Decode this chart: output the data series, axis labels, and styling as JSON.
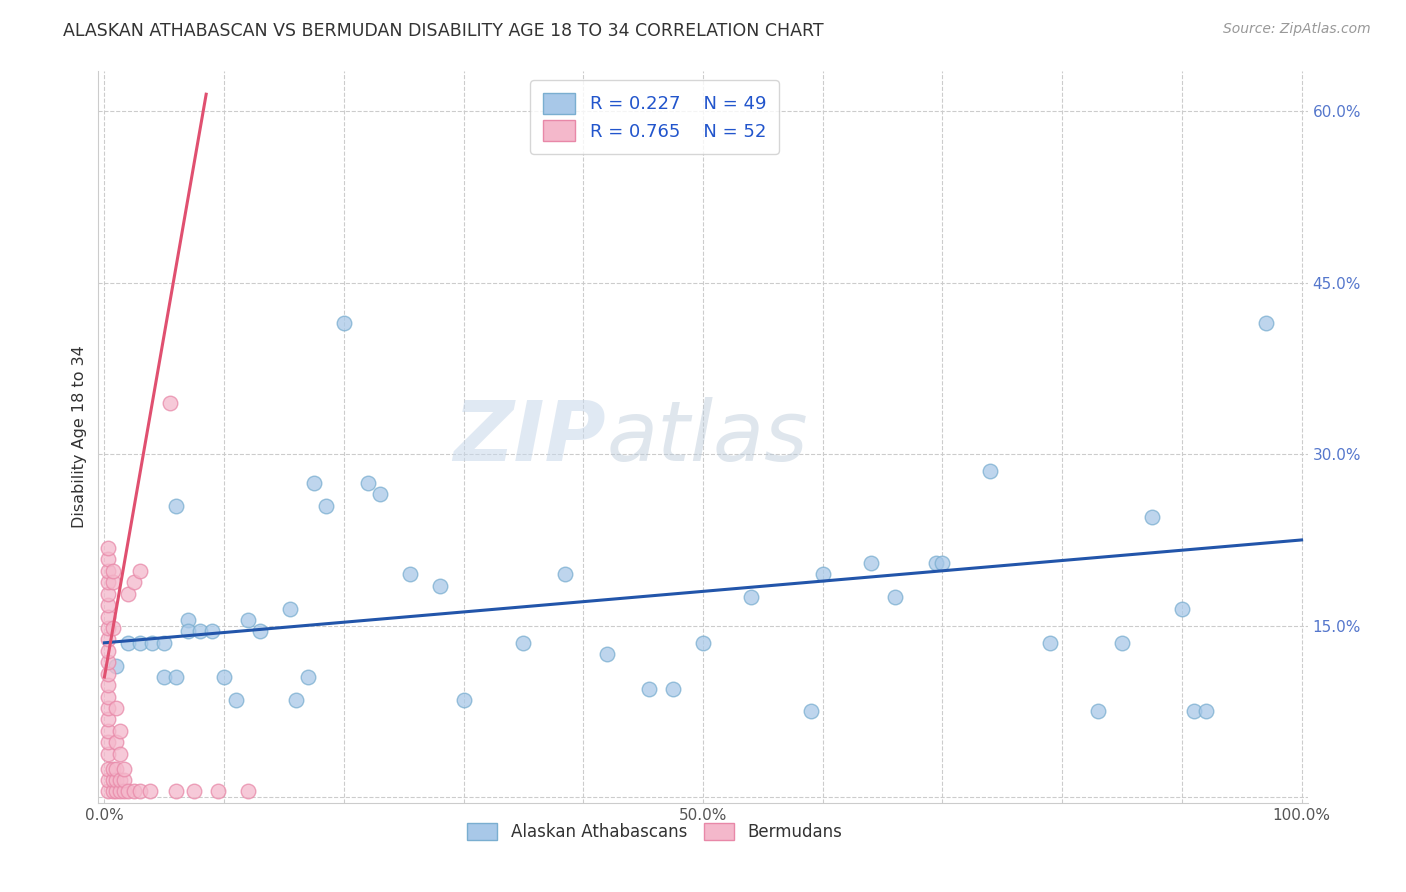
{
  "title": "ALASKAN ATHABASCAN VS BERMUDAN DISABILITY AGE 18 TO 34 CORRELATION CHART",
  "source": "Source: ZipAtlas.com",
  "ylabel": "Disability Age 18 to 34",
  "watermark_zip": "ZIP",
  "watermark_atlas": "atlas",
  "legend_r1": "R = 0.227",
  "legend_n1": "N = 49",
  "legend_r2": "R = 0.765",
  "legend_n2": "N = 52",
  "xlim": [
    -0.005,
    1.005
  ],
  "ylim": [
    -0.005,
    0.635
  ],
  "xticks": [
    0.0,
    0.1,
    0.2,
    0.3,
    0.4,
    0.5,
    0.6,
    0.7,
    0.8,
    0.9,
    1.0
  ],
  "xticklabels": [
    "0.0%",
    "",
    "",
    "",
    "",
    "50.0%",
    "",
    "",
    "",
    "",
    "100.0%"
  ],
  "yticks_right": [
    0.15,
    0.3,
    0.45,
    0.6
  ],
  "yticklabels_right": [
    "15.0%",
    "30.0%",
    "45.0%",
    "60.0%"
  ],
  "grid_yticks": [
    0.0,
    0.15,
    0.3,
    0.45,
    0.6
  ],
  "blue_color": "#a8c8e8",
  "blue_edge_color": "#7aaed0",
  "pink_color": "#f4b8cb",
  "pink_edge_color": "#e888a8",
  "blue_line_color": "#2255aa",
  "pink_line_color": "#e05070",
  "blue_scatter": [
    [
      0.01,
      0.115
    ],
    [
      0.02,
      0.135
    ],
    [
      0.03,
      0.135
    ],
    [
      0.04,
      0.135
    ],
    [
      0.05,
      0.135
    ],
    [
      0.05,
      0.105
    ],
    [
      0.06,
      0.105
    ],
    [
      0.06,
      0.255
    ],
    [
      0.07,
      0.155
    ],
    [
      0.07,
      0.145
    ],
    [
      0.08,
      0.145
    ],
    [
      0.09,
      0.145
    ],
    [
      0.1,
      0.105
    ],
    [
      0.11,
      0.085
    ],
    [
      0.12,
      0.155
    ],
    [
      0.13,
      0.145
    ],
    [
      0.155,
      0.165
    ],
    [
      0.16,
      0.085
    ],
    [
      0.17,
      0.105
    ],
    [
      0.175,
      0.275
    ],
    [
      0.185,
      0.255
    ],
    [
      0.2,
      0.415
    ],
    [
      0.22,
      0.275
    ],
    [
      0.23,
      0.265
    ],
    [
      0.255,
      0.195
    ],
    [
      0.28,
      0.185
    ],
    [
      0.3,
      0.085
    ],
    [
      0.35,
      0.135
    ],
    [
      0.385,
      0.195
    ],
    [
      0.42,
      0.125
    ],
    [
      0.455,
      0.095
    ],
    [
      0.475,
      0.095
    ],
    [
      0.5,
      0.135
    ],
    [
      0.54,
      0.175
    ],
    [
      0.59,
      0.075
    ],
    [
      0.6,
      0.195
    ],
    [
      0.64,
      0.205
    ],
    [
      0.66,
      0.175
    ],
    [
      0.695,
      0.205
    ],
    [
      0.7,
      0.205
    ],
    [
      0.74,
      0.285
    ],
    [
      0.79,
      0.135
    ],
    [
      0.83,
      0.075
    ],
    [
      0.85,
      0.135
    ],
    [
      0.875,
      0.245
    ],
    [
      0.9,
      0.165
    ],
    [
      0.91,
      0.075
    ],
    [
      0.92,
      0.075
    ],
    [
      0.97,
      0.415
    ]
  ],
  "pink_scatter": [
    [
      0.003,
      0.005
    ],
    [
      0.003,
      0.015
    ],
    [
      0.003,
      0.025
    ],
    [
      0.003,
      0.038
    ],
    [
      0.003,
      0.048
    ],
    [
      0.003,
      0.058
    ],
    [
      0.003,
      0.068
    ],
    [
      0.003,
      0.078
    ],
    [
      0.003,
      0.088
    ],
    [
      0.003,
      0.098
    ],
    [
      0.003,
      0.108
    ],
    [
      0.003,
      0.118
    ],
    [
      0.003,
      0.128
    ],
    [
      0.003,
      0.138
    ],
    [
      0.003,
      0.148
    ],
    [
      0.003,
      0.158
    ],
    [
      0.003,
      0.168
    ],
    [
      0.003,
      0.178
    ],
    [
      0.003,
      0.188
    ],
    [
      0.003,
      0.198
    ],
    [
      0.003,
      0.208
    ],
    [
      0.003,
      0.218
    ],
    [
      0.007,
      0.005
    ],
    [
      0.007,
      0.015
    ],
    [
      0.007,
      0.025
    ],
    [
      0.007,
      0.148
    ],
    [
      0.007,
      0.188
    ],
    [
      0.007,
      0.198
    ],
    [
      0.01,
      0.005
    ],
    [
      0.01,
      0.015
    ],
    [
      0.01,
      0.025
    ],
    [
      0.01,
      0.048
    ],
    [
      0.01,
      0.078
    ],
    [
      0.013,
      0.005
    ],
    [
      0.013,
      0.015
    ],
    [
      0.013,
      0.038
    ],
    [
      0.013,
      0.058
    ],
    [
      0.016,
      0.005
    ],
    [
      0.016,
      0.015
    ],
    [
      0.016,
      0.025
    ],
    [
      0.02,
      0.005
    ],
    [
      0.02,
      0.178
    ],
    [
      0.025,
      0.005
    ],
    [
      0.025,
      0.188
    ],
    [
      0.03,
      0.005
    ],
    [
      0.03,
      0.198
    ],
    [
      0.038,
      0.005
    ],
    [
      0.055,
      0.345
    ],
    [
      0.06,
      0.005
    ],
    [
      0.075,
      0.005
    ],
    [
      0.095,
      0.005
    ],
    [
      0.12,
      0.005
    ]
  ],
  "blue_trend_x": [
    0.0,
    1.0
  ],
  "blue_trend_y": [
    0.135,
    0.225
  ],
  "pink_trend_x": [
    0.0,
    0.085
  ],
  "pink_trend_y": [
    0.105,
    0.615
  ]
}
